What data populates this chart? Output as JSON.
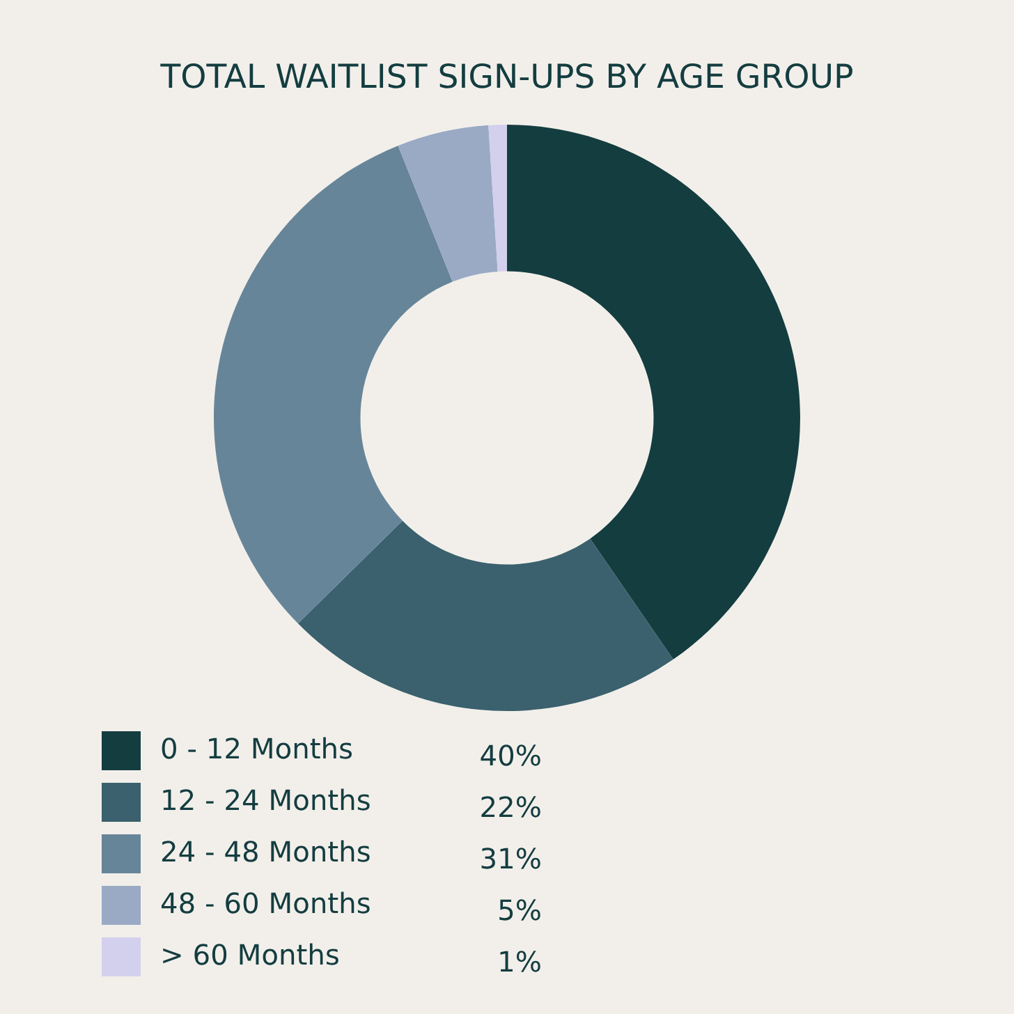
{
  "chart_data": {
    "type": "donut",
    "title": "TOTAL WAITLIST SIGN-UPS BY AGE GROUP",
    "categories": [
      "0 - 12 Months",
      "12 - 24 Months",
      "24 - 48 Months",
      "48 - 60 Months",
      "> 60 Months"
    ],
    "values": [
      40,
      22,
      31,
      5,
      1
    ],
    "colors": [
      "#143d40",
      "#3a616d",
      "#678599",
      "#9aaac5",
      "#d3d0ee"
    ],
    "value_labels": [
      "40%",
      "22%",
      "31%",
      "5%",
      "1%"
    ],
    "legend": "bottom left"
  }
}
